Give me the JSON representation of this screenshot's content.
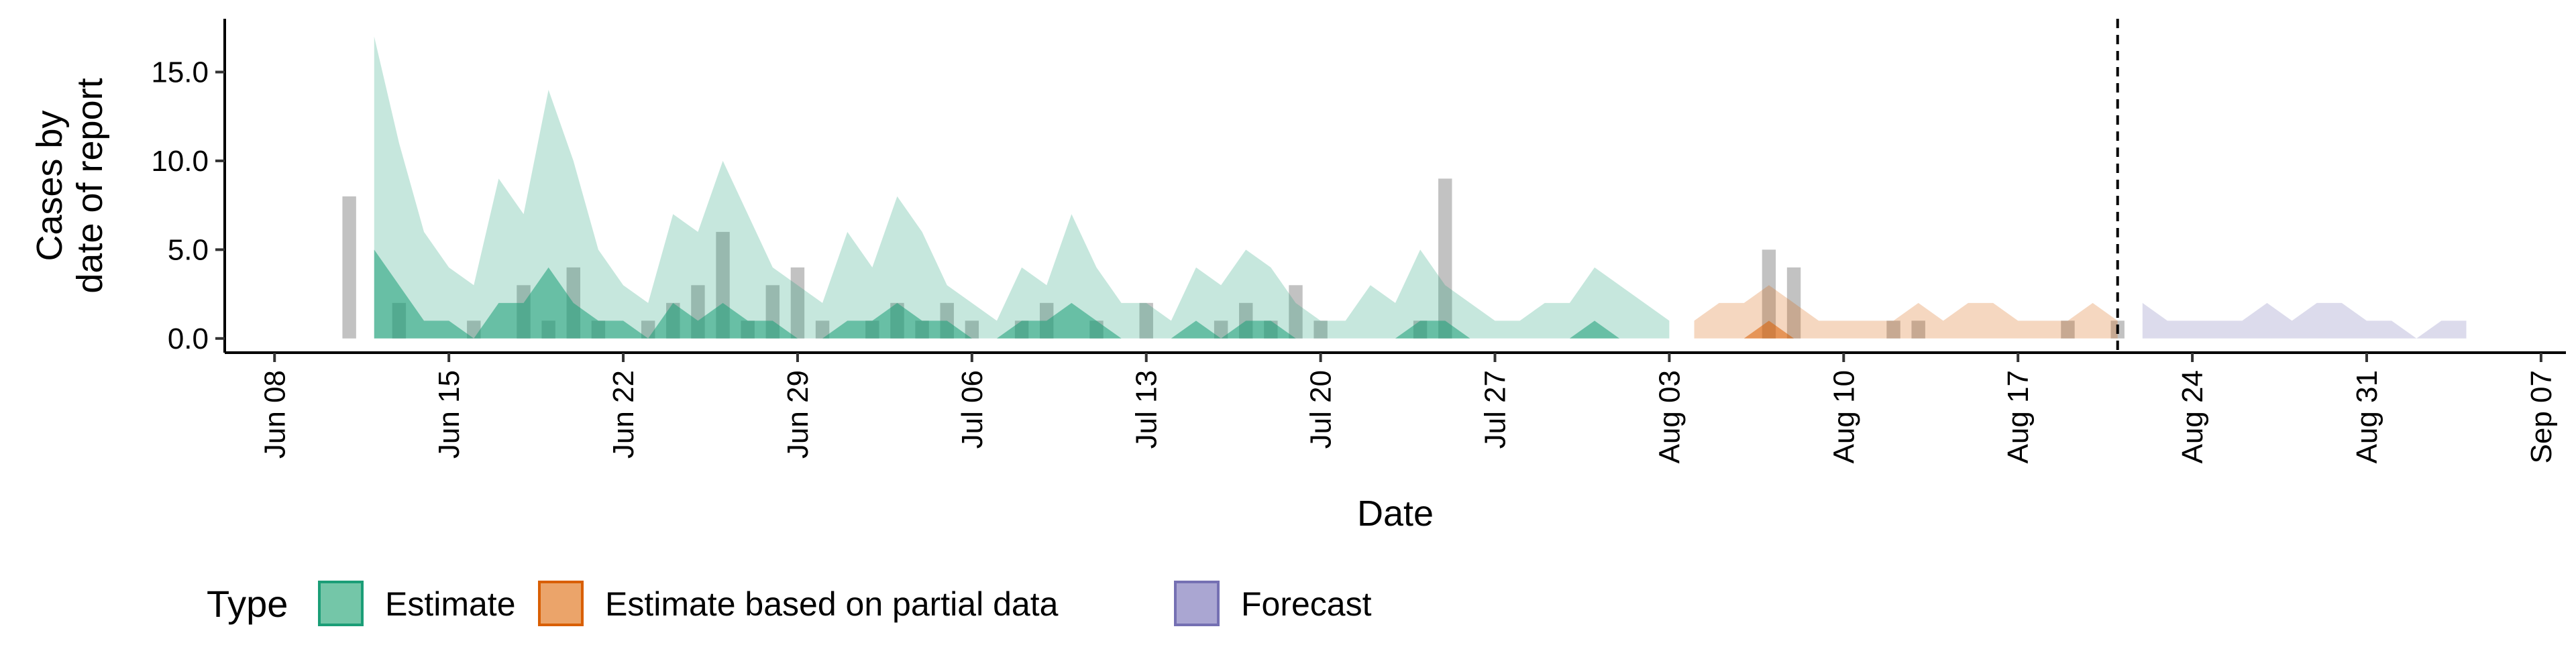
{
  "chart_data": {
    "type": "area",
    "xlabel": "Date",
    "ylabel_lines": [
      "Cases by",
      "date of report"
    ],
    "x_axis": {
      "type": "date",
      "range": [
        "2020-06-06",
        "2020-09-08"
      ],
      "ticks": [
        {
          "date": "2020-06-08",
          "label": "Jun 08"
        },
        {
          "date": "2020-06-15",
          "label": "Jun 15"
        },
        {
          "date": "2020-06-22",
          "label": "Jun 22"
        },
        {
          "date": "2020-06-29",
          "label": "Jun 29"
        },
        {
          "date": "2020-07-06",
          "label": "Jul 06"
        },
        {
          "date": "2020-07-13",
          "label": "Jul 13"
        },
        {
          "date": "2020-07-20",
          "label": "Jul 20"
        },
        {
          "date": "2020-07-27",
          "label": "Jul 27"
        },
        {
          "date": "2020-08-03",
          "label": "Aug 03"
        },
        {
          "date": "2020-08-10",
          "label": "Aug 10"
        },
        {
          "date": "2020-08-17",
          "label": "Aug 17"
        },
        {
          "date": "2020-08-24",
          "label": "Aug 24"
        },
        {
          "date": "2020-08-31",
          "label": "Aug 31"
        },
        {
          "date": "2020-09-07",
          "label": "Sep 07"
        }
      ]
    },
    "y_axis": {
      "range": [
        -0.8,
        18
      ],
      "ticks": [
        {
          "value": 0,
          "label": "0.0"
        },
        {
          "value": 5,
          "label": "5.0"
        },
        {
          "value": 10,
          "label": "10.0"
        },
        {
          "value": 15,
          "label": "15.0"
        }
      ]
    },
    "grid": false,
    "legend": {
      "position": "bottom-left",
      "title": "Type",
      "entries": [
        {
          "name": "Estimate",
          "fill": "#74c6a8",
          "stroke": "#1b9e77"
        },
        {
          "name": "Estimate based on partial data",
          "fill": "#eba46a",
          "stroke": "#d95f02"
        },
        {
          "name": "Forecast",
          "fill": "#aaa6d2",
          "stroke": "#7570b3"
        }
      ]
    },
    "vline": {
      "date": "2020-08-21",
      "style": "dashed"
    },
    "observed_cases": {
      "color": "#a8a8a8",
      "points": [
        {
          "date": "2020-06-11",
          "value": 8
        },
        {
          "date": "2020-06-13",
          "value": 2
        },
        {
          "date": "2020-06-16",
          "value": 1
        },
        {
          "date": "2020-06-18",
          "value": 3
        },
        {
          "date": "2020-06-19",
          "value": 1
        },
        {
          "date": "2020-06-20",
          "value": 4
        },
        {
          "date": "2020-06-21",
          "value": 1
        },
        {
          "date": "2020-06-23",
          "value": 1
        },
        {
          "date": "2020-06-24",
          "value": 2
        },
        {
          "date": "2020-06-25",
          "value": 3
        },
        {
          "date": "2020-06-26",
          "value": 6
        },
        {
          "date": "2020-06-27",
          "value": 1
        },
        {
          "date": "2020-06-28",
          "value": 3
        },
        {
          "date": "2020-06-29",
          "value": 4
        },
        {
          "date": "2020-06-30",
          "value": 1
        },
        {
          "date": "2020-07-02",
          "value": 1
        },
        {
          "date": "2020-07-03",
          "value": 2
        },
        {
          "date": "2020-07-04",
          "value": 1
        },
        {
          "date": "2020-07-05",
          "value": 2
        },
        {
          "date": "2020-07-06",
          "value": 1
        },
        {
          "date": "2020-07-08",
          "value": 1
        },
        {
          "date": "2020-07-09",
          "value": 2
        },
        {
          "date": "2020-07-11",
          "value": 1
        },
        {
          "date": "2020-07-13",
          "value": 2
        },
        {
          "date": "2020-07-16",
          "value": 1
        },
        {
          "date": "2020-07-17",
          "value": 2
        },
        {
          "date": "2020-07-18",
          "value": 1
        },
        {
          "date": "2020-07-19",
          "value": 3
        },
        {
          "date": "2020-07-20",
          "value": 1
        },
        {
          "date": "2020-07-24",
          "value": 1
        },
        {
          "date": "2020-07-25",
          "value": 9
        },
        {
          "date": "2020-08-07",
          "value": 5
        },
        {
          "date": "2020-08-08",
          "value": 4
        },
        {
          "date": "2020-08-12",
          "value": 1
        },
        {
          "date": "2020-08-13",
          "value": 1
        },
        {
          "date": "2020-08-19",
          "value": 1
        },
        {
          "date": "2020-08-21",
          "value": 1
        }
      ]
    },
    "series": [
      {
        "name": "Estimate",
        "color": "#1b9e77",
        "bands": [
          {
            "opacity": 0.25,
            "x": [
              "2020-06-12",
              "2020-06-13",
              "2020-06-14",
              "2020-06-15",
              "2020-06-16",
              "2020-06-17",
              "2020-06-18",
              "2020-06-19",
              "2020-06-20",
              "2020-06-21",
              "2020-06-22",
              "2020-06-23",
              "2020-06-24",
              "2020-06-25",
              "2020-06-26",
              "2020-06-27",
              "2020-06-28",
              "2020-06-29",
              "2020-06-30",
              "2020-07-01",
              "2020-07-02",
              "2020-07-03",
              "2020-07-04",
              "2020-07-05",
              "2020-07-06",
              "2020-07-07",
              "2020-07-08",
              "2020-07-09",
              "2020-07-10",
              "2020-07-11",
              "2020-07-12",
              "2020-07-13",
              "2020-07-14",
              "2020-07-15",
              "2020-07-16",
              "2020-07-17",
              "2020-07-18",
              "2020-07-19",
              "2020-07-20",
              "2020-07-21",
              "2020-07-22",
              "2020-07-23",
              "2020-07-24",
              "2020-07-25",
              "2020-07-26",
              "2020-07-27",
              "2020-07-28",
              "2020-07-29",
              "2020-07-30",
              "2020-07-31",
              "2020-08-01",
              "2020-08-02",
              "2020-08-03"
            ],
            "lower": [
              0,
              0,
              0,
              0,
              0,
              0,
              0,
              0,
              0,
              0,
              0,
              0,
              0,
              0,
              0,
              0,
              0,
              0,
              0,
              0,
              0,
              0,
              0,
              0,
              0,
              0,
              0,
              0,
              0,
              0,
              0,
              0,
              0,
              0,
              0,
              0,
              0,
              0,
              0,
              0,
              0,
              0,
              0,
              0,
              0,
              0,
              0,
              0,
              0,
              0,
              0,
              0,
              0
            ],
            "upper": [
              17,
              11,
              6,
              4,
              3,
              9,
              7,
              14,
              10,
              5,
              3,
              2,
              7,
              6,
              10,
              7,
              4,
              3,
              2,
              6,
              4,
              8,
              6,
              3,
              2,
              1,
              4,
              3,
              7,
              4,
              2,
              2,
              1,
              4,
              3,
              5,
              4,
              2,
              1,
              1,
              3,
              2,
              5,
              3,
              2,
              1,
              1,
              2,
              2,
              4,
              3,
              2,
              1
            ]
          },
          {
            "opacity": 0.55,
            "x": [
              "2020-06-12",
              "2020-06-13",
              "2020-06-14",
              "2020-06-15",
              "2020-06-16",
              "2020-06-17",
              "2020-06-18",
              "2020-06-19",
              "2020-06-20",
              "2020-06-21",
              "2020-06-22",
              "2020-06-23",
              "2020-06-24",
              "2020-06-25",
              "2020-06-26",
              "2020-06-27",
              "2020-06-28",
              "2020-06-29",
              "2020-06-30",
              "2020-07-01",
              "2020-07-02",
              "2020-07-03",
              "2020-07-04",
              "2020-07-05",
              "2020-07-06",
              "2020-07-07",
              "2020-07-08",
              "2020-07-09",
              "2020-07-10",
              "2020-07-11",
              "2020-07-12",
              "2020-07-13",
              "2020-07-14",
              "2020-07-15",
              "2020-07-16",
              "2020-07-17",
              "2020-07-18",
              "2020-07-19",
              "2020-07-20",
              "2020-07-21",
              "2020-07-22",
              "2020-07-23",
              "2020-07-24",
              "2020-07-25",
              "2020-07-26",
              "2020-07-27",
              "2020-07-28",
              "2020-07-29",
              "2020-07-30",
              "2020-07-31",
              "2020-08-01",
              "2020-08-02",
              "2020-08-03"
            ],
            "lower": [
              0,
              0,
              0,
              0,
              0,
              0,
              0,
              0,
              0,
              0,
              0,
              0,
              0,
              0,
              0,
              0,
              0,
              0,
              0,
              0,
              0,
              0,
              0,
              0,
              0,
              0,
              0,
              0,
              0,
              0,
              0,
              0,
              0,
              0,
              0,
              0,
              0,
              0,
              0,
              0,
              0,
              0,
              0,
              0,
              0,
              0,
              0,
              0,
              0,
              0,
              0,
              0,
              0
            ],
            "upper": [
              5,
              3,
              1,
              1,
              0,
              2,
              2,
              4,
              2,
              1,
              1,
              0,
              2,
              1,
              2,
              1,
              1,
              0,
              0,
              1,
              1,
              2,
              1,
              1,
              0,
              0,
              1,
              1,
              2,
              1,
              0,
              0,
              0,
              1,
              0,
              1,
              1,
              0,
              0,
              0,
              0,
              0,
              1,
              1,
              0,
              0,
              0,
              0,
              0,
              1,
              0,
              0,
              0
            ]
          }
        ]
      },
      {
        "name": "Estimate based on partial data",
        "color": "#d95f02",
        "bands": [
          {
            "opacity": 0.25,
            "x": [
              "2020-08-04",
              "2020-08-05",
              "2020-08-06",
              "2020-08-07",
              "2020-08-08",
              "2020-08-09",
              "2020-08-10",
              "2020-08-11",
              "2020-08-12",
              "2020-08-13",
              "2020-08-14",
              "2020-08-15",
              "2020-08-16",
              "2020-08-17",
              "2020-08-18",
              "2020-08-19",
              "2020-08-20",
              "2020-08-21"
            ],
            "lower": [
              0,
              0,
              0,
              0,
              0,
              0,
              0,
              0,
              0,
              0,
              0,
              0,
              0,
              0,
              0,
              0,
              0,
              0
            ],
            "upper": [
              1,
              2,
              2,
              3,
              2,
              1,
              1,
              1,
              1,
              2,
              1,
              2,
              2,
              1,
              1,
              1,
              2,
              1
            ]
          },
          {
            "opacity": 0.55,
            "x": [
              "2020-08-06",
              "2020-08-07",
              "2020-08-08"
            ],
            "lower": [
              0,
              0,
              0
            ],
            "upper": [
              0,
              1,
              0
            ]
          }
        ]
      },
      {
        "name": "Forecast",
        "color": "#7570b3",
        "bands": [
          {
            "opacity": 0.25,
            "x": [
              "2020-08-22",
              "2020-08-23",
              "2020-08-24",
              "2020-08-25",
              "2020-08-26",
              "2020-08-27",
              "2020-08-28",
              "2020-08-29",
              "2020-08-30",
              "2020-08-31",
              "2020-09-01",
              "2020-09-02",
              "2020-09-03",
              "2020-09-04"
            ],
            "lower": [
              0,
              0,
              0,
              0,
              0,
              0,
              0,
              0,
              0,
              0,
              0,
              0,
              0,
              0
            ],
            "upper": [
              2,
              1,
              1,
              1,
              1,
              2,
              1,
              2,
              2,
              1,
              1,
              0,
              1,
              1
            ]
          }
        ]
      }
    ]
  }
}
